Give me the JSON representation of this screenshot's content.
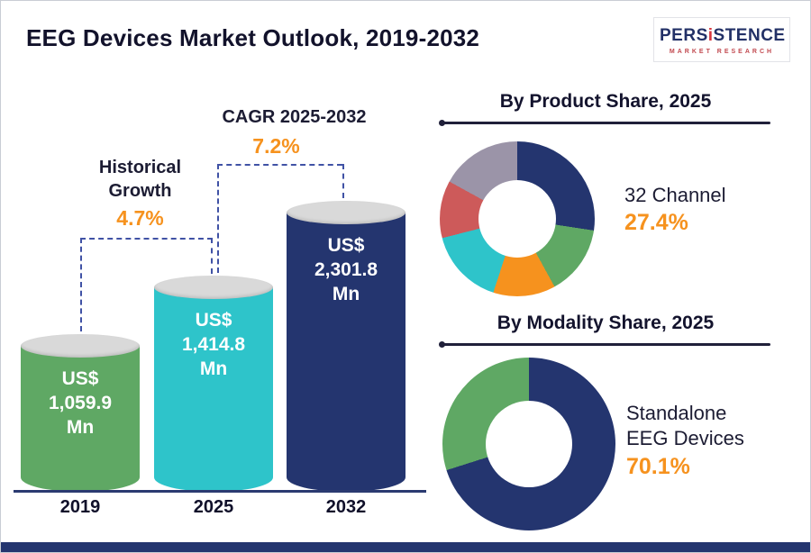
{
  "header": {
    "title": "EEG Devices Market Outlook, 2019-2032",
    "logo": {
      "brand_part1": "PERS",
      "brand_part2": "i",
      "brand_part3": "STENCE",
      "subtitle": "MARKET RESEARCH"
    }
  },
  "colors": {
    "accent_orange": "#f6921e",
    "navy": "#24356f",
    "teal": "#2ec4ca",
    "green": "#5fa864",
    "red": "#cd5a5a",
    "gray": "#9b94a8"
  },
  "chart_data": [
    {
      "type": "bar",
      "title": "EEG Devices Market Outlook, 2019-2032",
      "unit": "US$ Mn",
      "categories": [
        "2019",
        "2025",
        "2032"
      ],
      "values": [
        1059.9,
        1414.8,
        2301.8
      ],
      "bars": [
        {
          "year": "2019",
          "lines": [
            "US$",
            "1,059.9",
            "Mn"
          ],
          "color": "#5fa864"
        },
        {
          "year": "2025",
          "lines": [
            "US$",
            "1,414.8",
            "Mn"
          ],
          "color": "#2ec4ca"
        },
        {
          "year": "2032",
          "lines": [
            "US$",
            "2,301.8",
            "Mn"
          ],
          "color": "#24356f"
        }
      ],
      "annotations": [
        {
          "span": "2019-2025",
          "label_lines": [
            "Historical",
            "Growth"
          ],
          "value": "4.7%"
        },
        {
          "span": "2025-2032",
          "label_lines": [
            "CAGR 2025-2032"
          ],
          "value": "7.2%"
        }
      ]
    },
    {
      "type": "pie",
      "donut": true,
      "title": "By Product Share, 2025",
      "legend_position": "right",
      "highlight": {
        "label": "32 Channel",
        "value": "27.4%"
      },
      "slices": [
        {
          "label": "32 Channel",
          "value": 27.4,
          "color": "#24356f"
        },
        {
          "label": "",
          "value": 14.6,
          "color": "#5fa864"
        },
        {
          "label": "",
          "value": 13.0,
          "color": "#f6921e"
        },
        {
          "label": "",
          "value": 16.0,
          "color": "#2ec4ca"
        },
        {
          "label": "",
          "value": 12.0,
          "color": "#cd5a5a"
        },
        {
          "label": "",
          "value": 17.0,
          "color": "#9b94a8"
        }
      ]
    },
    {
      "type": "pie",
      "donut": true,
      "title": "By Modality Share, 2025",
      "legend_position": "right",
      "highlight": {
        "label": "Standalone EEG Devices",
        "value": "70.1%"
      },
      "highlight_label_lines": [
        "Standalone",
        "EEG Devices"
      ],
      "slices": [
        {
          "label": "Standalone EEG Devices",
          "value": 70.1,
          "color": "#24356f"
        },
        {
          "label": "",
          "value": 29.9,
          "color": "#5fa864"
        }
      ]
    }
  ]
}
